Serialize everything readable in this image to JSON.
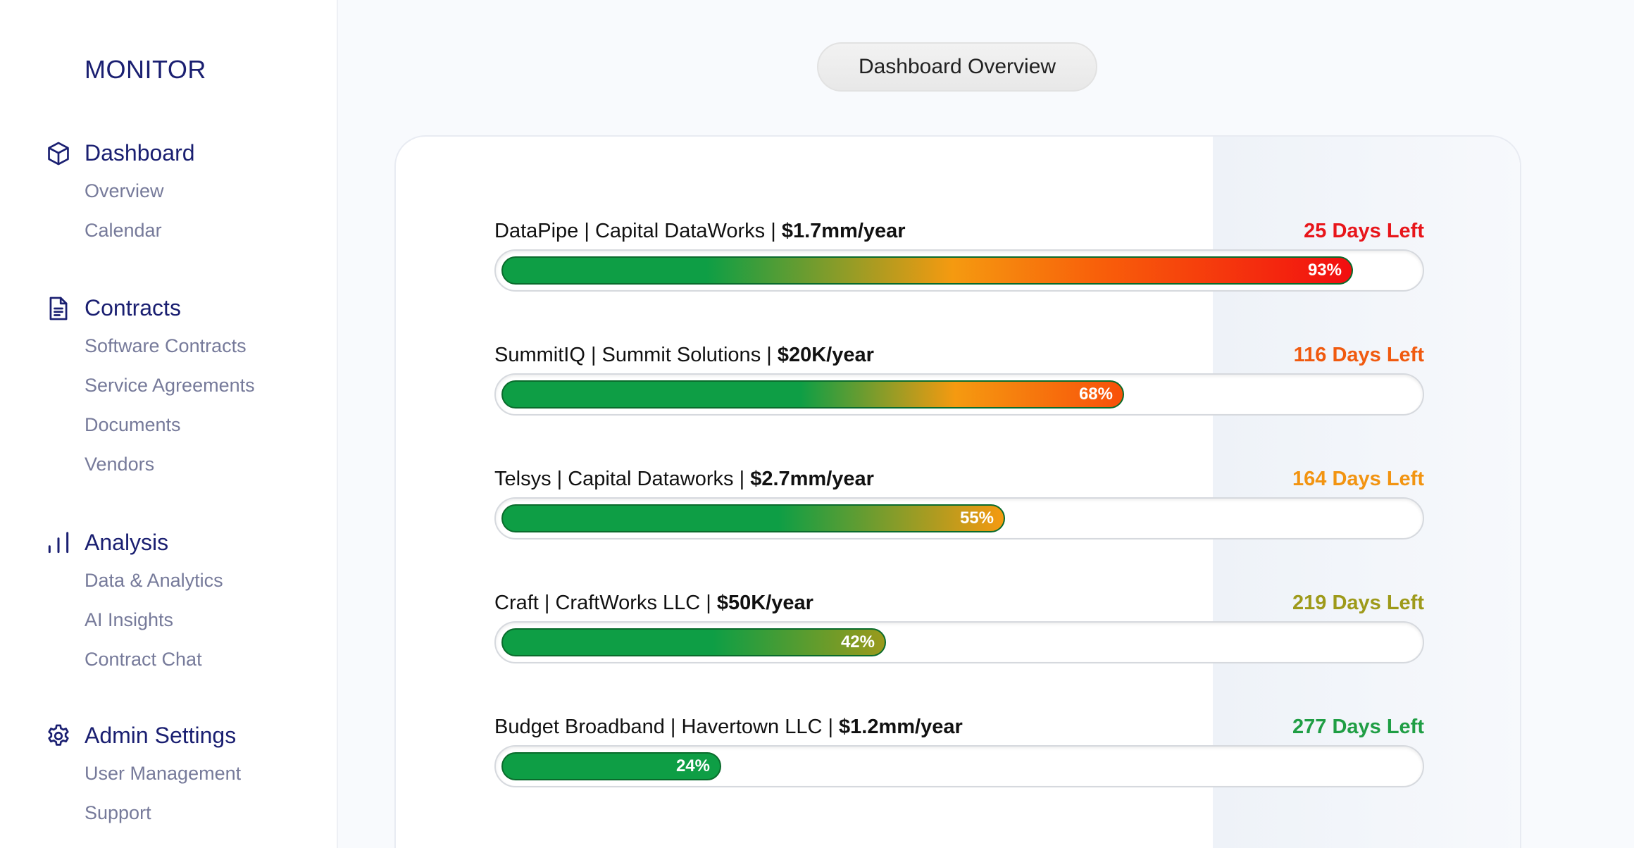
{
  "sidebar": {
    "brand": "MONITOR",
    "sections": [
      {
        "label": "Dashboard",
        "icon": "cube-icon",
        "items": [
          "Overview",
          "Calendar"
        ]
      },
      {
        "label": "Contracts",
        "icon": "document-icon",
        "items": [
          "Software Contracts",
          "Service Agreements",
          "Documents",
          "Vendors"
        ]
      },
      {
        "label": "Analysis",
        "icon": "bar-chart-icon",
        "items": [
          "Data & Analytics",
          "AI Insights",
          "Contract Chat"
        ]
      },
      {
        "label": "Admin Settings",
        "icon": "gear-icon",
        "items": [
          "User Management",
          "Support"
        ]
      }
    ]
  },
  "header": {
    "pill_label": "Dashboard Overview"
  },
  "contracts": [
    {
      "name": "DataPipe | Capital DataWorks | ",
      "value": "$1.7mm/year",
      "days": "25 Days Left",
      "percent": 93,
      "percent_label": "93%",
      "days_color": "#e8151a",
      "end_color": "#f20e10"
    },
    {
      "name": "SummitIQ | Summit Solutions | ",
      "value": "$20K/year",
      "days": "116 Days Left",
      "percent": 68,
      "percent_label": "68%",
      "days_color": "#f05a0f",
      "end_color": "#f8500a"
    },
    {
      "name": "Telsys | Capital Dataworks | ",
      "value": "$2.7mm/year",
      "days": "164 Days Left",
      "percent": 55,
      "percent_label": "55%",
      "days_color": "#f29411",
      "end_color": "#f59a10"
    },
    {
      "name": "Craft | CraftWorks LLC | ",
      "value": "$50K/year",
      "days": "219 Days Left",
      "percent": 42,
      "percent_label": "42%",
      "days_color": "#9e9a1a",
      "end_color": "#9a9a1c"
    },
    {
      "name": "Budget Broadband | Havertown LLC | ",
      "value": "$1.2mm/year",
      "days": "277 Days Left",
      "percent": 24,
      "percent_label": "24%",
      "days_color": "#1f9e44",
      "end_color": "#0e9e45"
    }
  ],
  "colors": {
    "brand": "#1a1f71",
    "bar_start": "#0e9e45"
  }
}
